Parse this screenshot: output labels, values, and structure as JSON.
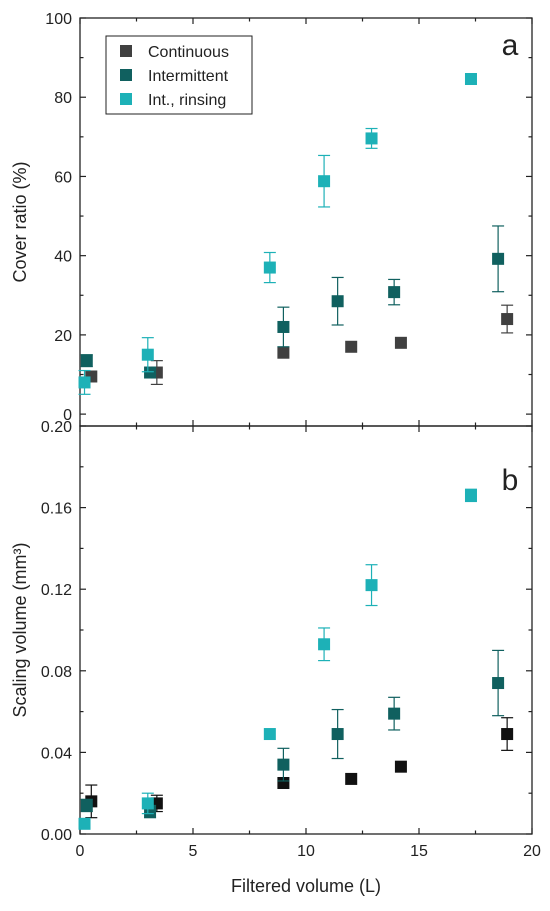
{
  "chart_data": [
    {
      "type": "scatter",
      "panel_label": "a",
      "ylabel": "Cover ratio (%)",
      "xlabel": "",
      "xlim": [
        0,
        20
      ],
      "ylim": [
        -3,
        100
      ],
      "x_ticks": [
        0,
        5,
        10,
        15,
        20
      ],
      "y_ticks": [
        0,
        20,
        40,
        60,
        80,
        100
      ],
      "y_tick_labels": [
        "0",
        "20",
        "40",
        "60",
        "80",
        "100"
      ],
      "legend": {
        "position": "top-left",
        "border": true
      },
      "error_bars": true,
      "series": [
        {
          "name": "Continuous",
          "color": "#404040",
          "marker": "square",
          "points": [
            {
              "x": 0.5,
              "y": 9.5,
              "err": 0
            },
            {
              "x": 3.4,
              "y": 10.5,
              "err": 3
            },
            {
              "x": 9.0,
              "y": 15.5,
              "err": 0
            },
            {
              "x": 12.0,
              "y": 17,
              "err": 0
            },
            {
              "x": 14.2,
              "y": 18,
              "err": 0
            },
            {
              "x": 18.9,
              "y": 24,
              "err": 3.5
            }
          ]
        },
        {
          "name": "Intermittent",
          "color": "#10605f",
          "marker": "square",
          "points": [
            {
              "x": 0.3,
              "y": 13.5,
              "err": 1.5
            },
            {
              "x": 3.1,
              "y": 10.5,
              "err": 0
            },
            {
              "x": 9.0,
              "y": 22,
              "err": 5
            },
            {
              "x": 11.4,
              "y": 28.5,
              "err": 6
            },
            {
              "x": 13.9,
              "y": 30.8,
              "err": 3.2
            },
            {
              "x": 18.5,
              "y": 39.2,
              "err": 8.3
            }
          ]
        },
        {
          "name": "Int., rinsing",
          "color": "#1db1b7",
          "marker": "square",
          "points": [
            {
              "x": 0.2,
              "y": 8,
              "err": 3
            },
            {
              "x": 3.0,
              "y": 15,
              "err": 4.3
            },
            {
              "x": 8.4,
              "y": 37,
              "err": 3.8
            },
            {
              "x": 10.8,
              "y": 58.8,
              "err": 6.5
            },
            {
              "x": 12.9,
              "y": 69.6,
              "err": 2.5
            },
            {
              "x": 17.3,
              "y": 84.6,
              "err": 0
            }
          ]
        }
      ]
    },
    {
      "type": "scatter",
      "panel_label": "b",
      "ylabel": "Scaling volume (mm³)",
      "xlabel": "Filtered volume (L)",
      "xlim": [
        0,
        20
      ],
      "ylim": [
        0,
        0.2
      ],
      "x_ticks": [
        0,
        5,
        10,
        15,
        20
      ],
      "x_tick_labels": [
        "0",
        "5",
        "10",
        "15",
        "20"
      ],
      "y_ticks": [
        0,
        0.04,
        0.08,
        0.12,
        0.16,
        0.2
      ],
      "y_tick_labels": [
        "0.00",
        "0.04",
        "0.08",
        "0.12",
        "0.16",
        "0.20"
      ],
      "error_bars": true,
      "series": [
        {
          "name": "Continuous",
          "color": "#111111",
          "marker": "square",
          "points": [
            {
              "x": 0.5,
              "y": 0.016,
              "err": 0.008
            },
            {
              "x": 3.4,
              "y": 0.015,
              "err": 0.004
            },
            {
              "x": 9.0,
              "y": 0.025,
              "err": 0
            },
            {
              "x": 12.0,
              "y": 0.027,
              "err": 0
            },
            {
              "x": 14.2,
              "y": 0.033,
              "err": 0
            },
            {
              "x": 18.9,
              "y": 0.049,
              "err": 0.008
            }
          ]
        },
        {
          "name": "Intermittent",
          "color": "#10605f",
          "marker": "square",
          "points": [
            {
              "x": 0.3,
              "y": 0.014,
              "err": 0.003
            },
            {
              "x": 3.1,
              "y": 0.011,
              "err": 0.003
            },
            {
              "x": 9.0,
              "y": 0.034,
              "err": 0.008
            },
            {
              "x": 11.4,
              "y": 0.049,
              "err": 0.012
            },
            {
              "x": 13.9,
              "y": 0.059,
              "err": 0.008
            },
            {
              "x": 18.5,
              "y": 0.074,
              "err": 0.016
            }
          ]
        },
        {
          "name": "Int., rinsing",
          "color": "#1db1b7",
          "marker": "square",
          "points": [
            {
              "x": 0.2,
              "y": 0.005,
              "err": 0
            },
            {
              "x": 3.0,
              "y": 0.015,
              "err": 0.005
            },
            {
              "x": 8.4,
              "y": 0.049,
              "err": 0
            },
            {
              "x": 10.8,
              "y": 0.093,
              "err": 0.008
            },
            {
              "x": 12.9,
              "y": 0.122,
              "err": 0.01
            },
            {
              "x": 17.3,
              "y": 0.166,
              "err": 0.003
            }
          ]
        }
      ]
    }
  ]
}
